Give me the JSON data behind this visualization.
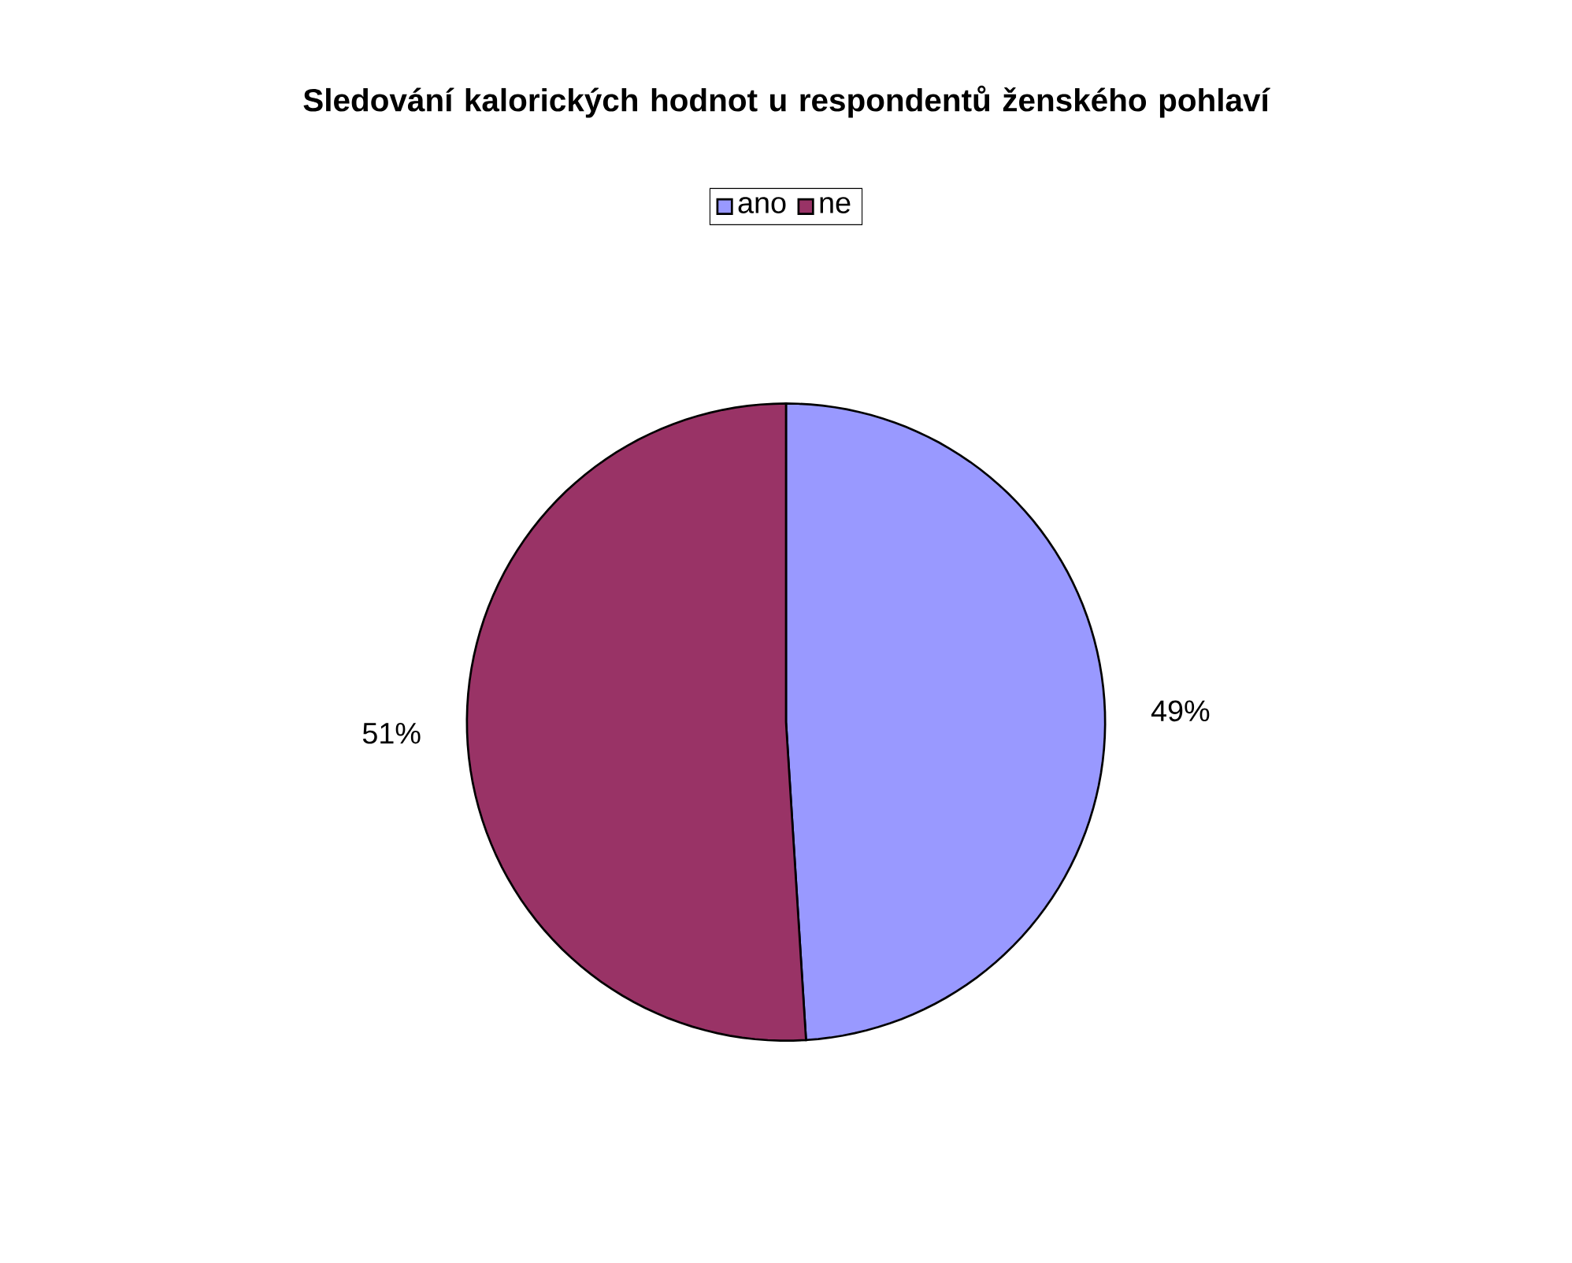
{
  "chart_data": {
    "type": "pie",
    "title": "Sledování kalorických hodnot u respondentů ženského pohlaví",
    "categories": [
      "ano",
      "ne"
    ],
    "values": [
      49,
      51
    ],
    "colors": [
      "#9999ff",
      "#993366"
    ],
    "data_labels": true,
    "value_labels": [
      "49%",
      "51%"
    ],
    "legend": "top"
  }
}
